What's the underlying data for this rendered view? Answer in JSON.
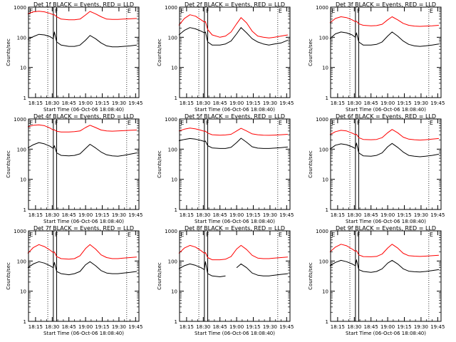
{
  "figure": {
    "xlabel": "Start Time (06-Oct-06 18:08:40)",
    "ylabel": "Counts/sec",
    "x_tick_labels": [
      "18:15",
      "18:30",
      "18:45",
      "19:00",
      "19:15",
      "19:30",
      "19:45"
    ],
    "y_tick_labels": [
      "1",
      "10",
      "100",
      "1000"
    ],
    "marker_labels": [
      "E",
      "F",
      "E"
    ],
    "colors": {
      "events": "#000000",
      "lld": "#ff0000"
    }
  },
  "chart_data": [
    {
      "type": "line",
      "title": "Det 1f BLACK = Events, RED = LLD",
      "xlim": [
        "18:08:40",
        "19:48:00"
      ],
      "ylim": [
        1,
        1000
      ],
      "yscale": "log",
      "series": [
        {
          "color": "#000000",
          "x": [
            "18:08",
            "18:13",
            "18:18",
            "18:23",
            "18:28",
            "18:31",
            "18:32",
            "18:34",
            "18:38",
            "18:45",
            "18:50",
            "18:55",
            "19:00",
            "19:04",
            "19:09",
            "19:14",
            "19:19",
            "19:24",
            "19:29",
            "19:34",
            "19:40",
            "19:46"
          ],
          "values": [
            85,
            105,
            125,
            120,
            105,
            90,
            150,
            70,
            55,
            50,
            50,
            55,
            80,
            115,
            90,
            65,
            52,
            48,
            48,
            50,
            52,
            55
          ]
        },
        {
          "color": "#ff0000",
          "x": [
            "18:08",
            "18:13",
            "18:18",
            "18:23",
            "18:28",
            "18:31",
            "18:32",
            "18:34",
            "18:38",
            "18:45",
            "18:50",
            "18:55",
            "19:00",
            "19:04",
            "19:09",
            "19:14",
            "19:19",
            "19:24",
            "19:29",
            "19:34",
            "19:40",
            "19:46"
          ],
          "values": [
            600,
            700,
            730,
            700,
            620,
            560,
            560,
            480,
            400,
            380,
            380,
            400,
            550,
            720,
            600,
            480,
            400,
            390,
            390,
            400,
            410,
            420
          ]
        }
      ]
    },
    {
      "type": "line",
      "title": "Det 2f BLACK = Events, RED = LLD",
      "xlim": [
        "18:08:40",
        "19:48:00"
      ],
      "ylim": [
        1,
        1000
      ],
      "yscale": "log",
      "series": [
        {
          "color": "#000000",
          "x": [
            "18:08",
            "18:13",
            "18:18",
            "18:23",
            "18:28",
            "18:31",
            "18:32",
            "18:34",
            "18:38",
            "18:45",
            "18:50",
            "18:55",
            "19:00",
            "19:04",
            "19:09",
            "19:14",
            "19:19",
            "19:24",
            "19:29",
            "19:34",
            "19:40",
            "19:46"
          ],
          "values": [
            120,
            170,
            210,
            190,
            160,
            140,
            150,
            70,
            55,
            55,
            60,
            75,
            130,
            210,
            140,
            90,
            70,
            60,
            55,
            60,
            65,
            80
          ]
        },
        {
          "color": "#ff0000",
          "x": [
            "18:08",
            "18:13",
            "18:18",
            "18:23",
            "18:28",
            "18:31",
            "18:32",
            "18:34",
            "18:38",
            "18:45",
            "18:50",
            "18:55",
            "19:00",
            "19:04",
            "19:09",
            "19:14",
            "19:19",
            "19:24",
            "19:29",
            "19:34",
            "19:40",
            "19:46"
          ],
          "values": [
            250,
            420,
            560,
            500,
            380,
            320,
            330,
            180,
            120,
            100,
            110,
            150,
            280,
            450,
            300,
            160,
            110,
            100,
            95,
            100,
            110,
            120
          ]
        }
      ]
    },
    {
      "type": "line",
      "title": "Det 3f BLACK = Events, RED = LLD",
      "xlim": [
        "18:08:40",
        "19:48:00"
      ],
      "ylim": [
        1,
        1000
      ],
      "yscale": "log",
      "series": [
        {
          "color": "#000000",
          "x": [
            "18:08",
            "18:13",
            "18:18",
            "18:23",
            "18:28",
            "18:31",
            "18:32",
            "18:34",
            "18:38",
            "18:45",
            "18:50",
            "18:55",
            "19:00",
            "19:04",
            "19:09",
            "19:14",
            "19:19",
            "19:24",
            "19:29",
            "19:34",
            "19:40",
            "19:46"
          ],
          "values": [
            90,
            130,
            150,
            140,
            120,
            100,
            140,
            70,
            55,
            55,
            58,
            70,
            110,
            150,
            110,
            75,
            58,
            52,
            50,
            52,
            55,
            60
          ]
        },
        {
          "color": "#ff0000",
          "x": [
            "18:08",
            "18:13",
            "18:18",
            "18:23",
            "18:28",
            "18:31",
            "18:32",
            "18:34",
            "18:38",
            "18:45",
            "18:50",
            "18:55",
            "19:00",
            "19:04",
            "19:09",
            "19:14",
            "19:19",
            "19:24",
            "19:29",
            "19:34",
            "19:40",
            "19:46"
          ],
          "values": [
            300,
            420,
            480,
            450,
            380,
            330,
            340,
            280,
            250,
            240,
            245,
            270,
            380,
            480,
            380,
            290,
            250,
            235,
            230,
            235,
            240,
            250
          ]
        }
      ]
    },
    {
      "type": "line",
      "title": "Det 4f BLACK = Events, RED = LLD",
      "xlim": [
        "18:08:40",
        "19:48:00"
      ],
      "ylim": [
        1,
        1000
      ],
      "yscale": "log",
      "series": [
        {
          "color": "#000000",
          "x": [
            "18:08",
            "18:13",
            "18:18",
            "18:23",
            "18:28",
            "18:31",
            "18:32",
            "18:34",
            "18:38",
            "18:45",
            "18:50",
            "18:55",
            "19:00",
            "19:04",
            "19:09",
            "19:14",
            "19:19",
            "19:24",
            "19:29",
            "19:34",
            "19:40",
            "19:46"
          ],
          "values": [
            110,
            140,
            165,
            150,
            125,
            105,
            130,
            75,
            62,
            60,
            62,
            70,
            105,
            145,
            110,
            80,
            65,
            60,
            58,
            62,
            68,
            75
          ]
        },
        {
          "color": "#ff0000",
          "x": [
            "18:08",
            "18:13",
            "18:18",
            "18:23",
            "18:28",
            "18:31",
            "18:32",
            "18:34",
            "18:38",
            "18:45",
            "18:50",
            "18:55",
            "19:00",
            "19:04",
            "19:09",
            "19:14",
            "19:19",
            "19:24",
            "19:29",
            "19:34",
            "19:40",
            "19:46"
          ],
          "values": [
            550,
            620,
            640,
            600,
            500,
            430,
            440,
            390,
            370,
            370,
            380,
            400,
            520,
            620,
            520,
            430,
            400,
            395,
            400,
            410,
            420,
            430
          ]
        }
      ]
    },
    {
      "type": "line",
      "title": "Det 5f BLACK = Events, RED = LLD",
      "xlim": [
        "18:08:40",
        "19:48:00"
      ],
      "ylim": [
        1,
        1000
      ],
      "yscale": "log",
      "series": [
        {
          "color": "#000000",
          "x": [
            "18:08",
            "18:13",
            "18:18",
            "18:23",
            "18:28",
            "18:31",
            "18:32",
            "18:34",
            "18:38",
            "18:45",
            "18:50",
            "18:55",
            "19:00",
            "19:04",
            "19:09",
            "19:14",
            "19:19",
            "19:24",
            "19:29",
            "19:34",
            "19:40",
            "19:46"
          ],
          "values": [
            190,
            210,
            225,
            215,
            195,
            180,
            185,
            130,
            110,
            105,
            105,
            115,
            165,
            230,
            170,
            120,
            108,
            105,
            105,
            108,
            112,
            118
          ]
        },
        {
          "color": "#ff0000",
          "x": [
            "18:08",
            "18:13",
            "18:18",
            "18:23",
            "18:28",
            "18:31",
            "18:32",
            "18:34",
            "18:38",
            "18:45",
            "18:50",
            "18:55",
            "19:00",
            "19:04",
            "19:09",
            "19:14",
            "19:19",
            "19:24",
            "19:29",
            "19:34",
            "19:40",
            "19:46"
          ],
          "values": [
            400,
            460,
            500,
            470,
            420,
            390,
            395,
            340,
            300,
            290,
            295,
            310,
            400,
            490,
            400,
            320,
            300,
            290,
            288,
            292,
            300,
            310
          ]
        }
      ]
    },
    {
      "type": "line",
      "title": "Det 6f BLACK = Events, RED = LLD",
      "xlim": [
        "18:08:40",
        "19:48:00"
      ],
      "ylim": [
        1,
        1000
      ],
      "yscale": "log",
      "series": [
        {
          "color": "#000000",
          "x": [
            "18:08",
            "18:13",
            "18:18",
            "18:23",
            "18:28",
            "18:31",
            "18:32",
            "18:34",
            "18:38",
            "18:45",
            "18:50",
            "18:55",
            "19:00",
            "19:04",
            "19:09",
            "19:14",
            "19:19",
            "19:24",
            "19:29",
            "19:34",
            "19:40",
            "19:46"
          ],
          "values": [
            100,
            135,
            150,
            140,
            120,
            105,
            160,
            75,
            60,
            58,
            62,
            75,
            120,
            155,
            115,
            80,
            62,
            58,
            56,
            58,
            62,
            68
          ]
        },
        {
          "color": "#ff0000",
          "x": [
            "18:08",
            "18:13",
            "18:18",
            "18:23",
            "18:28",
            "18:31",
            "18:32",
            "18:34",
            "18:38",
            "18:45",
            "18:50",
            "18:55",
            "19:00",
            "19:04",
            "19:09",
            "19:14",
            "19:19",
            "19:24",
            "19:29",
            "19:34",
            "19:40",
            "19:46"
          ],
          "values": [
            300,
            380,
            420,
            400,
            340,
            300,
            310,
            240,
            210,
            205,
            210,
            240,
            350,
            450,
            350,
            250,
            215,
            205,
            200,
            205,
            215,
            225
          ]
        }
      ]
    },
    {
      "type": "line",
      "title": "Det 7f BLACK = Events, RED = LLD",
      "xlim": [
        "18:08:40",
        "19:48:00"
      ],
      "ylim": [
        1,
        1000
      ],
      "yscale": "log",
      "series": [
        {
          "color": "#000000",
          "x": [
            "18:08",
            "18:13",
            "18:18",
            "18:23",
            "18:28",
            "18:31",
            "18:32",
            "18:34",
            "18:38",
            "18:45",
            "18:50",
            "18:55",
            "19:00",
            "19:04",
            "19:09",
            "19:14",
            "19:19",
            "19:24",
            "19:29",
            "19:34",
            "19:40",
            "19:46"
          ],
          "values": [
            60,
            80,
            95,
            85,
            70,
            60,
            90,
            45,
            38,
            35,
            38,
            45,
            75,
            95,
            70,
            48,
            40,
            38,
            38,
            40,
            42,
            45
          ]
        },
        {
          "color": "#ff0000",
          "x": [
            "18:08",
            "18:13",
            "18:18",
            "18:23",
            "18:28",
            "18:31",
            "18:32",
            "18:34",
            "18:38",
            "18:45",
            "18:50",
            "18:55",
            "19:00",
            "19:04",
            "19:09",
            "19:14",
            "19:19",
            "19:24",
            "19:29",
            "19:34",
            "19:40",
            "19:46"
          ],
          "values": [
            180,
            280,
            350,
            300,
            230,
            190,
            200,
            140,
            120,
            115,
            120,
            150,
            260,
            350,
            250,
            160,
            130,
            120,
            120,
            125,
            130,
            135
          ]
        }
      ]
    },
    {
      "type": "line",
      "title": "Det 8f BLACK = Events, RED = LLD",
      "xlim": [
        "18:08:40",
        "19:48:00"
      ],
      "ylim": [
        1,
        1000
      ],
      "yscale": "log",
      "series": [
        {
          "color": "#000000",
          "x": [
            "18:08",
            "18:13",
            "18:18",
            "18:23",
            "18:28",
            "18:31",
            "18:32",
            "18:34",
            "18:38",
            "18:45",
            "18:50",
            "18:55",
            "19:00",
            "19:04",
            "19:09",
            "19:14",
            "19:19",
            "19:24",
            "19:29",
            "19:34",
            "19:40",
            "19:46"
          ],
          "values": [
            55,
            70,
            80,
            72,
            60,
            52,
            95,
            38,
            32,
            30,
            32,
            null,
            60,
            80,
            60,
            40,
            34,
            32,
            32,
            34,
            36,
            38
          ]
        },
        {
          "color": "#ff0000",
          "x": [
            "18:08",
            "18:13",
            "18:18",
            "18:23",
            "18:28",
            "18:31",
            "18:32",
            "18:34",
            "18:38",
            "18:45",
            "18:50",
            "18:55",
            "19:00",
            "19:04",
            "19:09",
            "19:14",
            "19:19",
            "19:24",
            "19:29",
            "19:34",
            "19:40",
            "19:46"
          ],
          "values": [
            180,
            270,
            330,
            290,
            220,
            180,
            190,
            130,
            110,
            110,
            115,
            140,
            250,
            330,
            240,
            155,
            125,
            120,
            120,
            125,
            130,
            135
          ]
        }
      ]
    },
    {
      "type": "line",
      "title": "Det 9f BLACK = Events, RED = LLD",
      "xlim": [
        "18:08:40",
        "19:48:00"
      ],
      "ylim": [
        1,
        1000
      ],
      "yscale": "log",
      "series": [
        {
          "color": "#000000",
          "x": [
            "18:08",
            "18:13",
            "18:18",
            "18:23",
            "18:28",
            "18:31",
            "18:32",
            "18:34",
            "18:38",
            "18:45",
            "18:50",
            "18:55",
            "19:00",
            "19:04",
            "19:09",
            "19:14",
            "19:19",
            "19:24",
            "19:29",
            "19:34",
            "19:40",
            "19:46"
          ],
          "values": [
            70,
            90,
            105,
            95,
            80,
            70,
            110,
            52,
            45,
            42,
            45,
            55,
            85,
            105,
            80,
            55,
            46,
            44,
            43,
            45,
            48,
            52
          ]
        },
        {
          "color": "#ff0000",
          "x": [
            "18:08",
            "18:13",
            "18:18",
            "18:23",
            "18:28",
            "18:31",
            "18:32",
            "18:34",
            "18:38",
            "18:45",
            "18:50",
            "18:55",
            "19:00",
            "19:04",
            "19:09",
            "19:14",
            "19:19",
            "19:24",
            "19:29",
            "19:34",
            "19:40",
            "19:46"
          ],
          "values": [
            200,
            290,
            360,
            320,
            250,
            210,
            220,
            160,
            140,
            138,
            142,
            170,
            270,
            360,
            270,
            180,
            150,
            145,
            142,
            145,
            150,
            155
          ]
        }
      ]
    }
  ]
}
